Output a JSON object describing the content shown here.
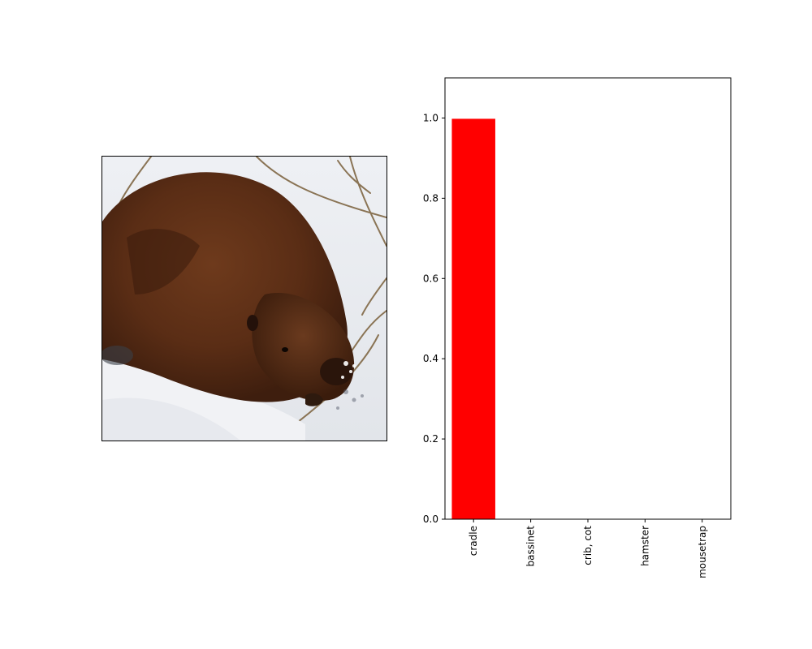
{
  "image_panel": {
    "subject": "beaver in snow"
  },
  "chart_data": {
    "type": "bar",
    "categories": [
      "cradle",
      "bassinet",
      "crib, cot",
      "hamster",
      "mousetrap"
    ],
    "values": [
      0.998,
      0.001,
      0.0005,
      0.0003,
      0.0002
    ],
    "title": "",
    "xlabel": "",
    "ylabel": "",
    "ylim": [
      0,
      1.1
    ],
    "yticks": [
      "0.0",
      "0.2",
      "0.4",
      "0.6",
      "0.8",
      "1.0"
    ],
    "ytick_values": [
      0,
      0.2,
      0.4,
      0.6,
      0.8,
      1.0
    ],
    "xtick_rotation": "vertical",
    "bar_color": "#ff0000",
    "grid": false
  }
}
